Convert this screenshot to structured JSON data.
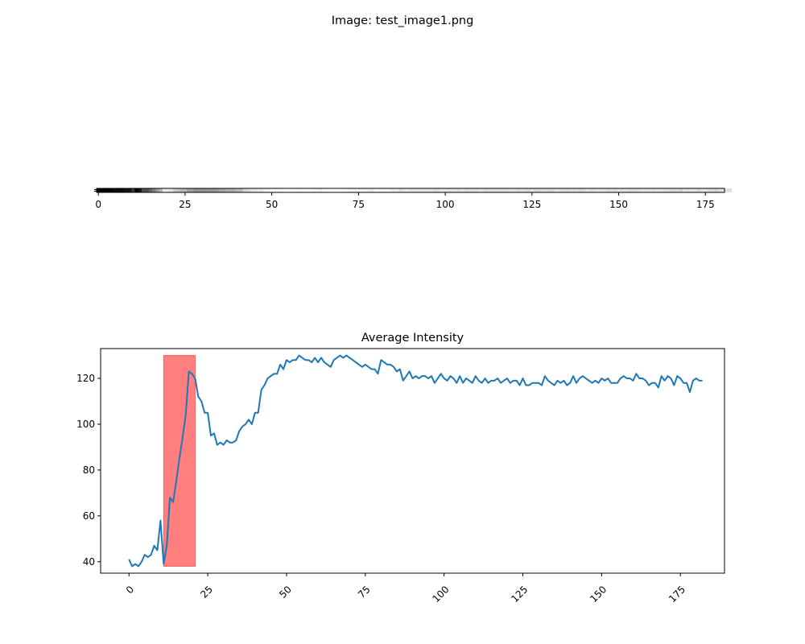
{
  "figure": {
    "suptitle": "Image: test_image1.png"
  },
  "chart_data": [
    {
      "type": "heatmap",
      "description_kind": "image-strip",
      "xlim": [
        -0.5,
        180.5
      ],
      "xticks": [
        0,
        25,
        50,
        75,
        100,
        125,
        150,
        175
      ],
      "colormap": "gray",
      "intensity": [
        41,
        38,
        39,
        38,
        40,
        43,
        42,
        43,
        47,
        45,
        58,
        39,
        47,
        68,
        66,
        75,
        85,
        94,
        104,
        123,
        122,
        120,
        112,
        110,
        105,
        105,
        95,
        96,
        91,
        92,
        91,
        93,
        92,
        92,
        93,
        97,
        99,
        100,
        102,
        100,
        105,
        105,
        115,
        117,
        120,
        121,
        122,
        122,
        126,
        124,
        128,
        127,
        128,
        128,
        130,
        129,
        128,
        128,
        127,
        129,
        127,
        129,
        127,
        126,
        125,
        128,
        129,
        130,
        129,
        130,
        129,
        128,
        127,
        126,
        125,
        126,
        125,
        124,
        124,
        122,
        128,
        127,
        126,
        126,
        125,
        123,
        124,
        119,
        121,
        123,
        120,
        121,
        120,
        121,
        121,
        120,
        121,
        118,
        120,
        122,
        120,
        119,
        121,
        120,
        118,
        121,
        118,
        120,
        119,
        118,
        121,
        119,
        118,
        120,
        118,
        119,
        119,
        120,
        118,
        119,
        120,
        118,
        119,
        119,
        117,
        120,
        117,
        117,
        118,
        118,
        118,
        117,
        121,
        119,
        118,
        117,
        119,
        118,
        119,
        117,
        118,
        121,
        118,
        120,
        121,
        120,
        119,
        118,
        119,
        118,
        120,
        119,
        120,
        118,
        118,
        118,
        120,
        121,
        120,
        120,
        119,
        122,
        120,
        120,
        119,
        117,
        118,
        118,
        116,
        121,
        119,
        121,
        120,
        117,
        121,
        120,
        118,
        118,
        114,
        119,
        120,
        119,
        119
      ]
    },
    {
      "type": "line",
      "title": "Average Intensity",
      "xlabel": "",
      "ylabel": "",
      "xlim": [
        -9,
        189
      ],
      "ylim": [
        35,
        133
      ],
      "xticks": [
        0,
        25,
        50,
        75,
        100,
        125,
        150,
        175
      ],
      "yticks": [
        40,
        60,
        80,
        100,
        120
      ],
      "xtick_rotation": 45,
      "grid": false,
      "series": [
        {
          "color": "#1f77b4",
          "x_start": 0,
          "x_step": 1,
          "values": [
            41,
            38,
            39,
            38,
            40,
            43,
            42,
            43,
            47,
            45,
            58,
            39,
            47,
            68,
            66,
            75,
            85,
            94,
            104,
            123,
            122,
            120,
            112,
            110,
            105,
            105,
            95,
            96,
            91,
            92,
            91,
            93,
            92,
            92,
            93,
            97,
            99,
            100,
            102,
            100,
            105,
            105,
            115,
            117,
            120,
            121,
            122,
            122,
            126,
            124,
            128,
            127,
            128,
            128,
            130,
            129,
            128,
            128,
            127,
            129,
            127,
            129,
            127,
            126,
            125,
            128,
            129,
            130,
            129,
            130,
            129,
            128,
            127,
            126,
            125,
            126,
            125,
            124,
            124,
            122,
            128,
            127,
            126,
            126,
            125,
            123,
            124,
            119,
            121,
            123,
            120,
            121,
            120,
            121,
            121,
            120,
            121,
            118,
            120,
            122,
            120,
            119,
            121,
            120,
            118,
            121,
            118,
            120,
            119,
            118,
            121,
            119,
            118,
            120,
            118,
            119,
            119,
            120,
            118,
            119,
            120,
            118,
            119,
            119,
            117,
            120,
            117,
            117,
            118,
            118,
            118,
            117,
            121,
            119,
            118,
            117,
            119,
            118,
            119,
            117,
            118,
            121,
            118,
            120,
            121,
            120,
            119,
            118,
            119,
            118,
            120,
            119,
            120,
            118,
            118,
            118,
            120,
            121,
            120,
            120,
            119,
            122,
            120,
            120,
            119,
            117,
            118,
            118,
            116,
            121,
            119,
            121,
            120,
            117,
            121,
            120,
            118,
            118,
            114,
            119,
            120,
            119,
            119
          ]
        }
      ],
      "highlight_region": {
        "x_range": [
          11,
          21
        ],
        "y_range": [
          38,
          130
        ],
        "color": "#ff0000",
        "opacity": 0.5
      }
    }
  ]
}
